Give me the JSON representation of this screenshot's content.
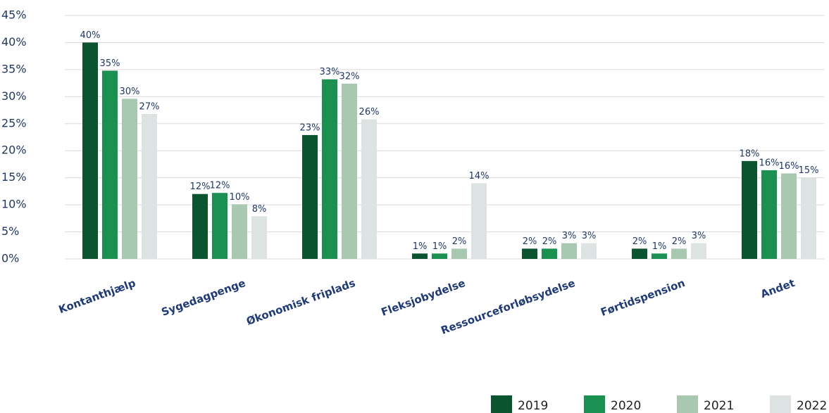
{
  "chart_data": {
    "type": "bar",
    "categories": [
      "Kontanthjælp",
      "Sygedagpenge",
      "Økonomisk friplads",
      "Fleksjobydelse",
      "Ressourceforløbsydelse",
      "Førtidspension",
      "Andet"
    ],
    "series": [
      {
        "name": "2019",
        "color": "#0b5430",
        "values": [
          40,
          12,
          22.9,
          1,
          1.9,
          1.9,
          18.1
        ],
        "value_labels": [
          "40%",
          "12%",
          "23%",
          "1%",
          "2%",
          "2%",
          "18%"
        ]
      },
      {
        "name": "2020",
        "color": "#1a9150",
        "values": [
          34.8,
          12.2,
          33.2,
          1,
          1.9,
          1,
          16.4
        ],
        "value_labels": [
          "35%",
          "12%",
          "33%",
          "1%",
          "2%",
          "1%",
          "16%"
        ]
      },
      {
        "name": "2021",
        "color": "#a8c8b0",
        "values": [
          29.6,
          10.1,
          32.4,
          1.9,
          2.9,
          1.9,
          15.8
        ],
        "value_labels": [
          "30%",
          "10%",
          "32%",
          "2%",
          "3%",
          "2%",
          "16%"
        ]
      },
      {
        "name": "2022",
        "color": "#dde3e2",
        "values": [
          26.8,
          7.9,
          25.8,
          14,
          2.9,
          2.9,
          15
        ],
        "value_labels": [
          "27%",
          "8%",
          "26%",
          "14%",
          "3%",
          "3%",
          "15%"
        ]
      }
    ],
    "ylim": [
      0,
      45
    ],
    "yticks": [
      {
        "value": 0,
        "label": "0%"
      },
      {
        "value": 5,
        "label": "5%"
      },
      {
        "value": 10,
        "label": "10%"
      },
      {
        "value": 15,
        "label": "15%"
      },
      {
        "value": 20,
        "label": "20%"
      },
      {
        "value": 25,
        "label": "25%"
      },
      {
        "value": 30,
        "label": "30%"
      },
      {
        "value": 35,
        "label": "35%"
      },
      {
        "value": 40,
        "label": "40%"
      },
      {
        "value": 45,
        "label": "45%"
      }
    ],
    "grid": true,
    "legend": "bottom-right"
  }
}
